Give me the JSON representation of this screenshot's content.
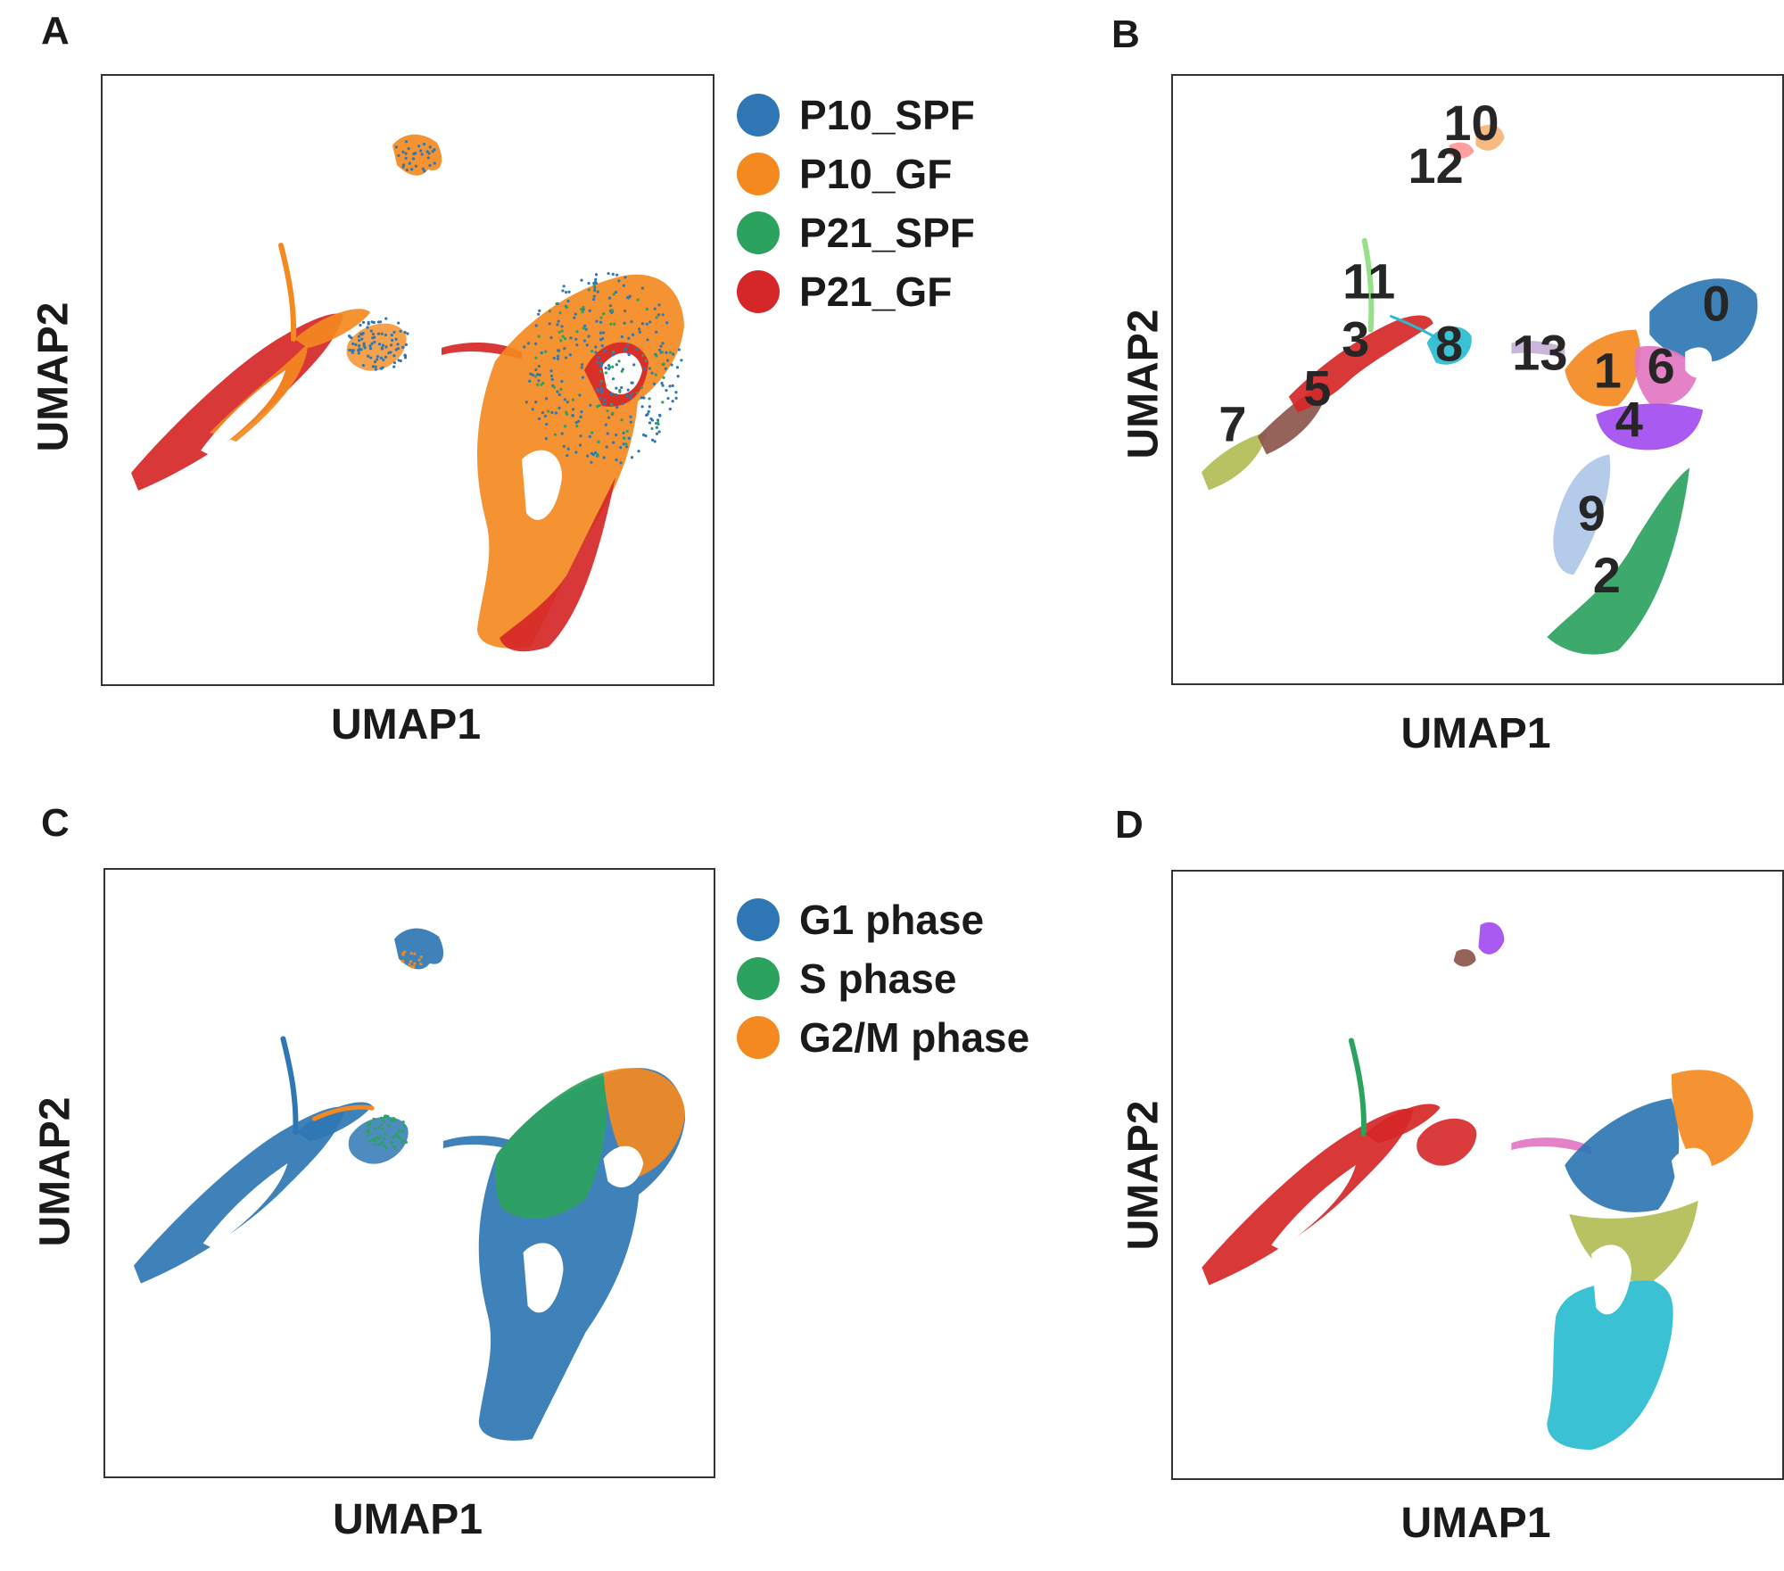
{
  "panels": {
    "A": {
      "letter": "A",
      "xlabel": "UMAP1",
      "ylabel": "UMAP2"
    },
    "B": {
      "letter": "B",
      "xlabel": "UMAP1",
      "ylabel": "UMAP2"
    },
    "C": {
      "letter": "C",
      "xlabel": "UMAP1",
      "ylabel": "UMAP2"
    },
    "D": {
      "letter": "D",
      "xlabel": "UMAP1",
      "ylabel": "UMAP2"
    }
  },
  "legends": {
    "A": [
      {
        "label": "P10_SPF",
        "color": "#2f77b4"
      },
      {
        "label": "P10_GF",
        "color": "#f4891f"
      },
      {
        "label": "P21_SPF",
        "color": "#2ca25f"
      },
      {
        "label": "P21_GF",
        "color": "#d62728"
      }
    ],
    "C": [
      {
        "label": "G1 phase",
        "color": "#2f77b4"
      },
      {
        "label": "S phase",
        "color": "#2ca25f"
      },
      {
        "label": "G2/M phase",
        "color": "#f4891f"
      }
    ]
  },
  "cluster_colors": {
    "0": "#2f77b4",
    "1": "#f4891f",
    "2": "#2ca25f",
    "3": "#d62728",
    "4": "#a24cf0",
    "5": "#8c564b",
    "6": "#e377c2",
    "7": "#b3bd56",
    "8": "#29bcd0",
    "9": "#aec7e8",
    "10": "#f7b478",
    "11": "#98df8a",
    "12": "#ff9896",
    "13": "#c5b0d5"
  },
  "chart_data": [
    {
      "panel": "A",
      "type": "scatter",
      "title": "",
      "xlabel": "UMAP1",
      "ylabel": "UMAP2",
      "color_by": "sample",
      "legend_entries": [
        "P10_SPF",
        "P10_GF",
        "P21_SPF",
        "P21_GF"
      ],
      "axis_ticks": "none",
      "grid": false,
      "legend_position": "right"
    },
    {
      "panel": "B",
      "type": "scatter",
      "title": "",
      "xlabel": "UMAP1",
      "ylabel": "UMAP2",
      "color_by": "cluster",
      "cluster_labels": [
        "0",
        "1",
        "2",
        "3",
        "4",
        "5",
        "6",
        "7",
        "8",
        "9",
        "10",
        "11",
        "12",
        "13"
      ],
      "axis_ticks": "none",
      "grid": false
    },
    {
      "panel": "C",
      "type": "scatter",
      "title": "",
      "xlabel": "UMAP1",
      "ylabel": "UMAP2",
      "color_by": "cell cycle phase",
      "legend_entries": [
        "G1 phase",
        "S phase",
        "G2/M phase"
      ],
      "axis_ticks": "none",
      "grid": false,
      "legend_position": "right"
    },
    {
      "panel": "D",
      "type": "scatter",
      "title": "",
      "xlabel": "UMAP1",
      "ylabel": "UMAP2",
      "color_by": "cell type",
      "axis_ticks": "none",
      "grid": false
    }
  ]
}
